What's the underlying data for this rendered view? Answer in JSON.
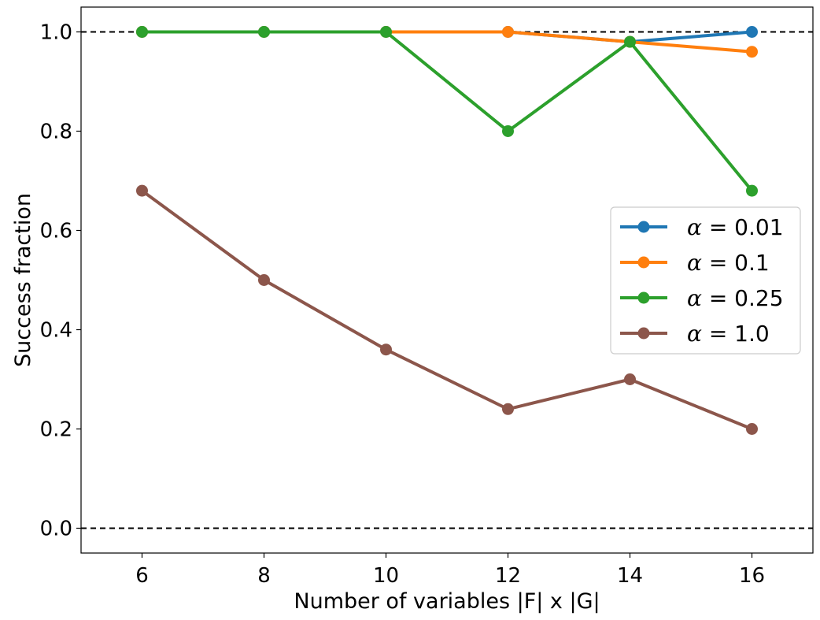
{
  "chart_data": {
    "type": "line",
    "title": "",
    "xlabel": "Number of variables |F| x |G|",
    "ylabel": "Success fraction",
    "xlim": [
      5,
      17
    ],
    "ylim": [
      -0.05,
      1.05
    ],
    "x": [
      6,
      8,
      10,
      12,
      14,
      16
    ],
    "xticks": [
      "6",
      "8",
      "10",
      "12",
      "14",
      "16"
    ],
    "yticks": [
      "0.0",
      "0.2",
      "0.4",
      "0.6",
      "0.8",
      "1.0"
    ],
    "ytick_values": [
      0.0,
      0.2,
      0.4,
      0.6,
      0.8,
      1.0
    ],
    "reference_lines": [
      0.0,
      1.0
    ],
    "legend_position": "center-right",
    "series": [
      {
        "name": "α = 0.01",
        "symbol": "α",
        "value_text": " = 0.01",
        "color": "#1f77b4",
        "values": [
          1.0,
          1.0,
          1.0,
          1.0,
          0.98,
          1.0
        ]
      },
      {
        "name": "α = 0.1",
        "symbol": "α",
        "value_text": " = 0.1",
        "color": "#ff7f0e",
        "values": [
          1.0,
          1.0,
          1.0,
          1.0,
          0.98,
          0.96
        ]
      },
      {
        "name": "α = 0.25",
        "symbol": "α",
        "value_text": " = 0.25",
        "color": "#2ca02c",
        "values": [
          1.0,
          1.0,
          1.0,
          0.8,
          0.98,
          0.68
        ]
      },
      {
        "name": "α = 1.0",
        "symbol": "α",
        "value_text": " = 1.0",
        "color": "#8c564b",
        "values": [
          0.68,
          0.5,
          0.36,
          0.24,
          0.3,
          0.2
        ]
      }
    ]
  }
}
